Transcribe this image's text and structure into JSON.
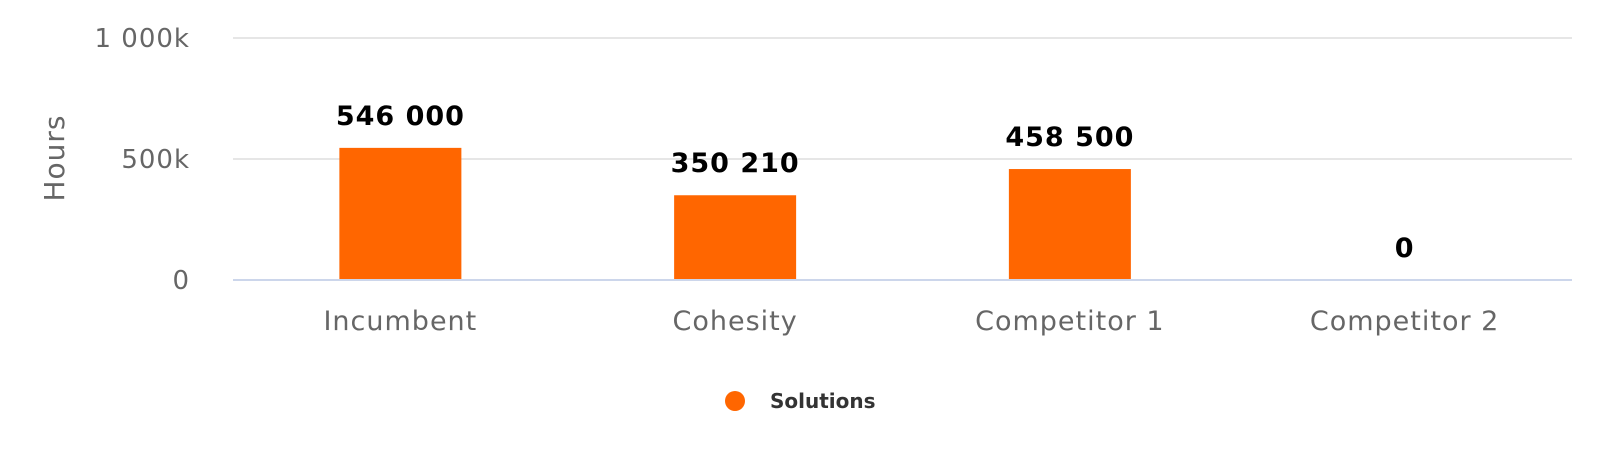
{
  "chart_data": {
    "type": "bar",
    "categories": [
      "Incumbent",
      "Cohesity",
      "Competitor 1",
      "Competitor 2"
    ],
    "series": [
      {
        "name": "Solutions",
        "values": [
          546000,
          350210,
          458500,
          0
        ],
        "data_labels": [
          "546 000",
          "350 210",
          "458 500",
          "0"
        ],
        "color": "#ff6600"
      }
    ],
    "title": "",
    "xlabel": "",
    "ylabel": "Hours",
    "ylim": [
      0,
      1000000
    ],
    "yticks": [
      0,
      500000,
      1000000
    ],
    "ytick_labels": [
      "0",
      "500k",
      "1 000k"
    ],
    "grid": true,
    "legend_position": "bottom-center"
  },
  "colors": {
    "gridline": "#e6e6e6",
    "axis_line": "#ccd6eb"
  }
}
